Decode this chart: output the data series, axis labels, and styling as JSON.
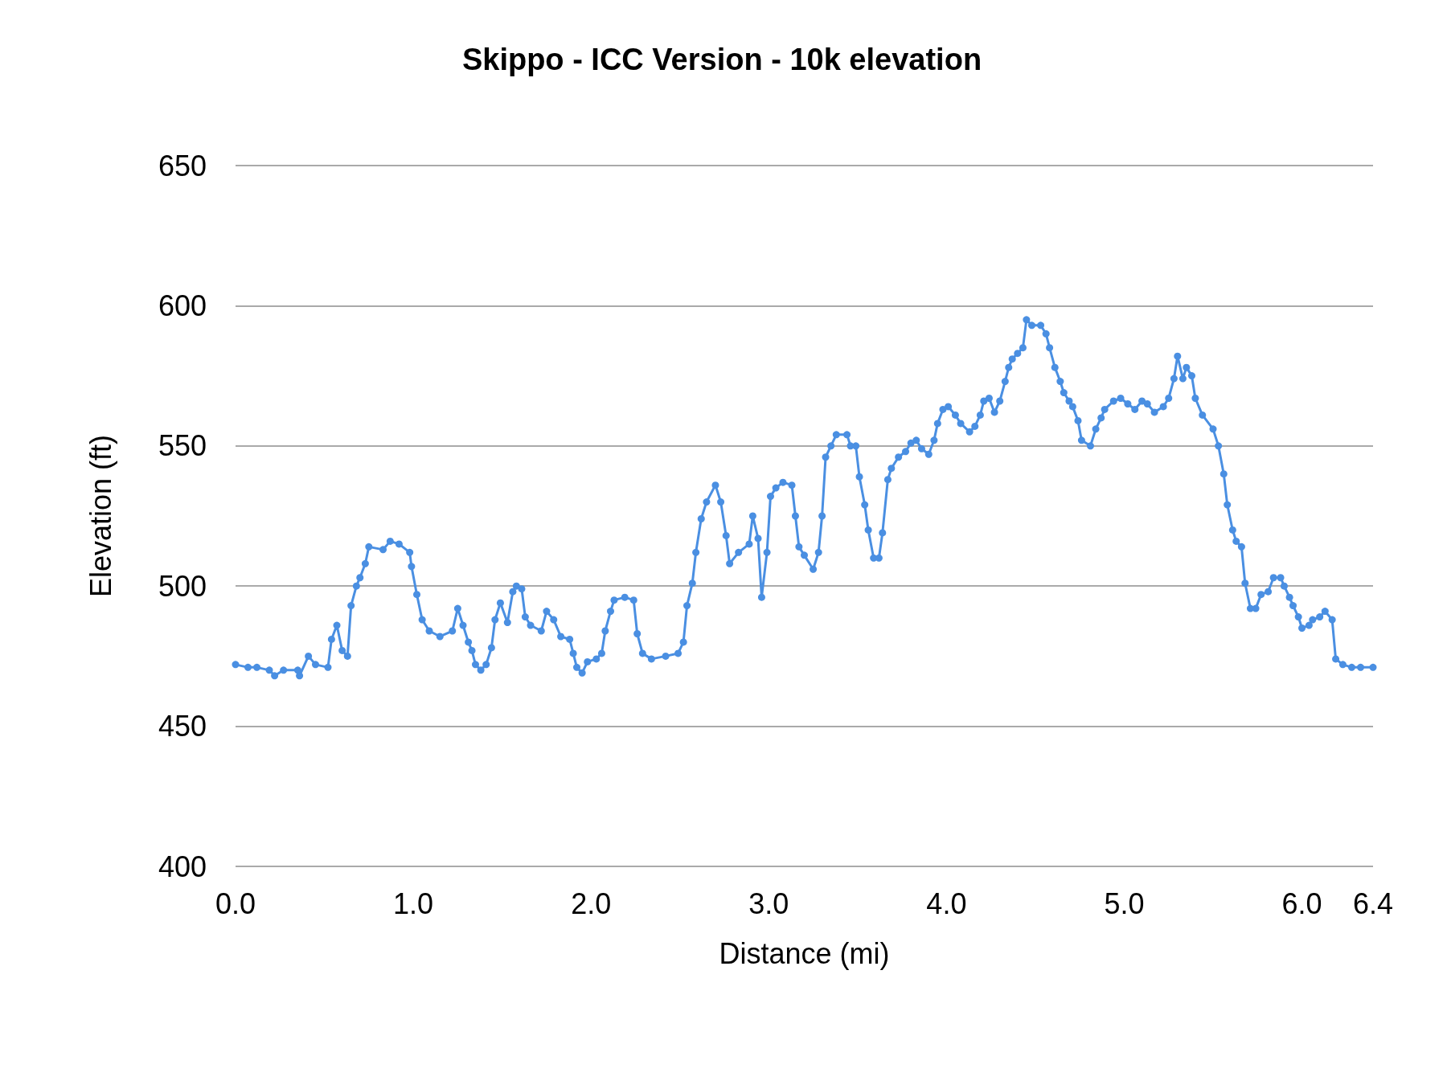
{
  "chart_data": {
    "type": "line",
    "title": "Skippo - ICC Version - 10k elevation",
    "xlabel": "Distance (mi)",
    "ylabel": "Elevation (ft)",
    "xlim": [
      0,
      6.4
    ],
    "xticks": [
      {
        "value": 0,
        "label": "0.0"
      },
      {
        "value": 1,
        "label": "1.0"
      },
      {
        "value": 2,
        "label": "2.0"
      },
      {
        "value": 3,
        "label": "3.0"
      },
      {
        "value": 4,
        "label": "4.0"
      },
      {
        "value": 5,
        "label": "5.0"
      },
      {
        "value": 6,
        "label": "6.0"
      },
      {
        "value": 6.4,
        "label": "6.4"
      }
    ],
    "ylim": [
      400,
      650
    ],
    "yticks": [
      400,
      450,
      500,
      550,
      600,
      650
    ],
    "grid": "y",
    "marker": "circle",
    "line_style": "solid",
    "series": [
      {
        "color": "#4a8fe2",
        "x": [
          0,
          0.07,
          0.12,
          0.19,
          0.22,
          0.27,
          0.35,
          0.36,
          0.41,
          0.45,
          0.52,
          0.54,
          0.57,
          0.6,
          0.63,
          0.65,
          0.68,
          0.7,
          0.73,
          0.75,
          0.83,
          0.87,
          0.92,
          0.98,
          0.99,
          1.02,
          1.05,
          1.09,
          1.15,
          1.22,
          1.25,
          1.28,
          1.31,
          1.33,
          1.35,
          1.38,
          1.41,
          1.44,
          1.46,
          1.49,
          1.53,
          1.56,
          1.58,
          1.61,
          1.63,
          1.66,
          1.72,
          1.75,
          1.79,
          1.83,
          1.88,
          1.9,
          1.92,
          1.95,
          1.98,
          2.03,
          2.06,
          2.08,
          2.11,
          2.13,
          2.19,
          2.24,
          2.26,
          2.29,
          2.34,
          2.42,
          2.49,
          2.52,
          2.54,
          2.57,
          2.59,
          2.62,
          2.65,
          2.7,
          2.73,
          2.76,
          2.78,
          2.83,
          2.89,
          2.91,
          2.94,
          2.96,
          2.99,
          3.01,
          3.04,
          3.08,
          3.13,
          3.15,
          3.17,
          3.2,
          3.25,
          3.28,
          3.3,
          3.32,
          3.35,
          3.38,
          3.44,
          3.46,
          3.49,
          3.51,
          3.54,
          3.56,
          3.59,
          3.62,
          3.64,
          3.67,
          3.69,
          3.73,
          3.77,
          3.8,
          3.83,
          3.86,
          3.9,
          3.93,
          3.95,
          3.98,
          4.01,
          4.05,
          4.08,
          4.13,
          4.16,
          4.19,
          4.21,
          4.24,
          4.27,
          4.3,
          4.33,
          4.35,
          4.37,
          4.4,
          4.43,
          4.45,
          4.48,
          4.53,
          4.56,
          4.58,
          4.61,
          4.64,
          4.66,
          4.69,
          4.71,
          4.74,
          4.76,
          4.81,
          4.84,
          4.87,
          4.89,
          4.94,
          4.98,
          5.02,
          5.06,
          5.1,
          5.13,
          5.17,
          5.22,
          5.25,
          5.28,
          5.3,
          5.33,
          5.35,
          5.38,
          5.4,
          5.44,
          5.5,
          5.53,
          5.56,
          5.58,
          5.61,
          5.63,
          5.66,
          5.68,
          5.71,
          5.74,
          5.77,
          5.81,
          5.84,
          5.88,
          5.9,
          5.93,
          5.95,
          5.98,
          6,
          6.04,
          6.06,
          6.1,
          6.13,
          6.17,
          6.19,
          6.23,
          6.28,
          6.33,
          6.4
        ],
        "values": [
          472,
          471,
          471,
          470,
          468,
          470,
          470,
          468,
          475,
          472,
          471,
          481,
          486,
          477,
          475,
          493,
          500,
          503,
          508,
          514,
          513,
          516,
          515,
          512,
          507,
          497,
          488,
          484,
          482,
          484,
          492,
          486,
          480,
          477,
          472,
          470,
          472,
          478,
          488,
          494,
          487,
          498,
          500,
          499,
          489,
          486,
          484,
          491,
          488,
          482,
          481,
          476,
          471,
          469,
          473,
          474,
          476,
          484,
          491,
          495,
          496,
          495,
          483,
          476,
          474,
          475,
          476,
          480,
          493,
          501,
          512,
          524,
          530,
          536,
          530,
          518,
          508,
          512,
          515,
          525,
          517,
          496,
          512,
          532,
          535,
          537,
          536,
          525,
          514,
          511,
          506,
          512,
          525,
          546,
          550,
          554,
          554,
          550,
          550,
          539,
          529,
          520,
          510,
          510,
          519,
          538,
          542,
          546,
          548,
          551,
          552,
          549,
          547,
          552,
          558,
          563,
          564,
          561,
          558,
          555,
          557,
          561,
          566,
          567,
          562,
          566,
          573,
          578,
          581,
          583,
          585,
          595,
          593,
          593,
          590,
          585,
          578,
          573,
          569,
          566,
          564,
          559,
          552,
          550,
          556,
          560,
          563,
          566,
          567,
          565,
          563,
          566,
          565,
          562,
          564,
          567,
          574,
          582,
          574,
          578,
          575,
          567,
          561,
          556,
          550,
          540,
          529,
          520,
          516,
          514,
          501,
          492,
          492,
          497,
          498,
          503,
          503,
          500,
          496,
          493,
          489,
          485,
          486,
          488,
          489,
          491,
          488,
          474,
          472,
          471,
          471,
          471
        ]
      }
    ]
  }
}
